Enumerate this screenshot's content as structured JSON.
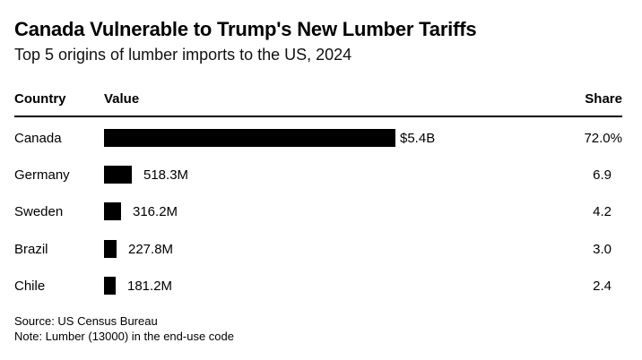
{
  "chart_data": {
    "type": "table",
    "title": "Canada Vulnerable to Trump's New Lumber Tariffs",
    "subtitle": "Top 5 origins of lumber imports to the US, 2024",
    "columns": [
      "Country",
      "Value",
      "Share"
    ],
    "rows": [
      {
        "country": "Canada",
        "value": 5400,
        "value_label": "$5.4B",
        "share": "72.0%"
      },
      {
        "country": "Germany",
        "value": 518.3,
        "value_label": "518.3M",
        "share": "6.9"
      },
      {
        "country": "Sweden",
        "value": 316.2,
        "value_label": "316.2M",
        "share": "4.2"
      },
      {
        "country": "Brazil",
        "value": 227.8,
        "value_label": "227.8M",
        "share": "3.0"
      },
      {
        "country": "Chile",
        "value": 181.2,
        "value_label": "181.2M",
        "share": "2.4"
      }
    ],
    "value_unit": "million USD",
    "bar_color": "#000000"
  },
  "footer": {
    "source": "Source: US Census Bureau",
    "note": "Note: Lumber (13000) in the end-use code"
  }
}
